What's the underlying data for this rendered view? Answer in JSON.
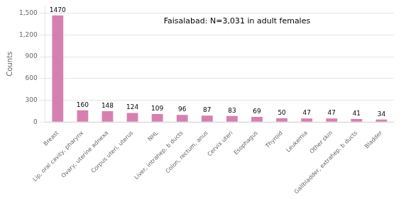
{
  "chart_data": {
    "type": "bar",
    "categories": [
      "Breast",
      "Lip, oral cavity, pharynx",
      "Ovary, uterine adnexa",
      "Corpus uteri, uterus",
      "NHL",
      "Liver, intrahep. b ducts",
      "Colon, rectum, anus",
      "Cervix uteri",
      "Esophagus",
      "Thyroid",
      "Leukemia",
      "Other skin",
      "Gallbladder, extrahep. b ducts",
      "Bladder"
    ],
    "values": [
      1470,
      160,
      148,
      124,
      109,
      96,
      87,
      83,
      69,
      50,
      47,
      47,
      41,
      34
    ],
    "color": "#d680b0",
    "ylabel": "Counts",
    "annotation": "Faisalabad: N=3,031 in adult females",
    "ylim": [
      0,
      1600
    ],
    "yticks": [
      0,
      300,
      600,
      900,
      1200,
      1500
    ],
    "grid": true,
    "data_labels": true,
    "legend": false
  }
}
